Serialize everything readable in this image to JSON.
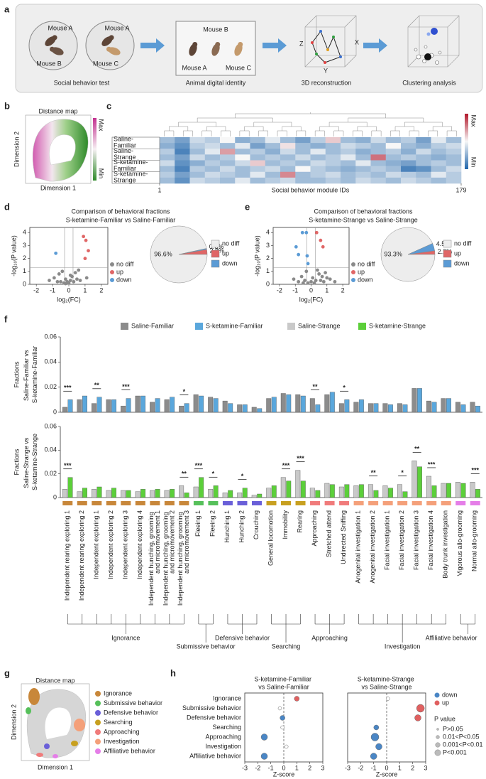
{
  "panel_labels": [
    "a",
    "b",
    "c",
    "d",
    "e",
    "f",
    "g",
    "h"
  ],
  "schematic": {
    "test_cages": [
      [
        "Mouse A",
        "Mouse B"
      ],
      [
        "Mouse A",
        "Mouse C"
      ]
    ],
    "test_caption": "Social behavior test",
    "identity_labels": [
      "Mouse B",
      "Mouse A",
      "Mouse C"
    ],
    "identity_caption": "Animal digital identity",
    "axes": [
      "X",
      "Y",
      "Z"
    ],
    "recon_caption": "3D reconstruction",
    "cluster_caption": "Clustering analysis"
  },
  "map_b": {
    "title": "Distance map",
    "xlabel": "Dimension 1",
    "ylabel": "Dimension 2",
    "scale": [
      "Max",
      "Min"
    ]
  },
  "map_g": {
    "title": "Distance map",
    "xlabel": "Dimension 1",
    "ylabel": "Dimension 2"
  },
  "chart_data": [
    {
      "type": "heatmap",
      "xlabel": "Social behavior module IDs",
      "xlim": [
        1,
        179
      ],
      "xticks": [
        1,
        179
      ],
      "zlim": [
        0,
        1
      ],
      "colorbar": [
        "Max",
        "Min"
      ],
      "row_groups": [
        {
          "name": "Saline-Familiar",
          "color": "#222222"
        },
        {
          "name": "Saline-Strange",
          "color": "#9a9a9a"
        },
        {
          "name": "S-ketamine-Familiar",
          "color": "#3b7fc4"
        },
        {
          "name": "S-ketamine-Strange",
          "color": "#3cb83c"
        }
      ],
      "values": [
        [
          0.3,
          0.2,
          0.4,
          0.35,
          0.5,
          0.25,
          0.3,
          0.45,
          0.3,
          0.2,
          0.35,
          0.6,
          0.3,
          0.25,
          0.4,
          0.3,
          0.35,
          0.2,
          0.45,
          0.3
        ],
        [
          0.25,
          0.15,
          0.35,
          0.4,
          0.3,
          0.45,
          0.2,
          0.3,
          0.55,
          0.3,
          0.25,
          0.3,
          0.4,
          0.35,
          0.3,
          0.5,
          0.3,
          0.25,
          0.35,
          0.4
        ],
        [
          0.35,
          0.1,
          0.3,
          0.45,
          0.7,
          0.3,
          0.35,
          0.25,
          0.4,
          0.3,
          0.45,
          0.3,
          0.35,
          0.25,
          0.3,
          0.35,
          0.25,
          0.4,
          0.3,
          0.35
        ],
        [
          0.3,
          0.2,
          0.4,
          0.3,
          0.35,
          0.5,
          0.3,
          0.35,
          0.3,
          0.4,
          0.3,
          0.35,
          0.45,
          0.3,
          0.8,
          0.3,
          0.35,
          0.3,
          0.25,
          0.3
        ],
        [
          0.4,
          0.15,
          0.25,
          0.35,
          0.3,
          0.4,
          0.6,
          0.3,
          0.35,
          0.3,
          0.4,
          0.35,
          0.3,
          0.45,
          0.3,
          0.25,
          0.2,
          0.3,
          0.35,
          0.3
        ],
        [
          0.3,
          0.1,
          0.35,
          0.3,
          0.4,
          0.3,
          0.35,
          0.4,
          0.3,
          0.5,
          0.35,
          0.3,
          0.25,
          0.3,
          0.35,
          0.3,
          0.1,
          0.15,
          0.3,
          0.4
        ],
        [
          0.35,
          0.2,
          0.3,
          0.4,
          0.35,
          0.3,
          0.45,
          0.3,
          0.75,
          0.3,
          0.35,
          0.4,
          0.3,
          0.35,
          0.3,
          0.4,
          0.35,
          0.3,
          0.45,
          0.35
        ],
        [
          0.3,
          0.15,
          0.4,
          0.35,
          0.3,
          0.45,
          0.3,
          0.35,
          0.4,
          0.3,
          0.3,
          0.35,
          0.3,
          0.4,
          0.35,
          0.3,
          0.4,
          0.35,
          0.3,
          0.35
        ]
      ]
    },
    {
      "type": "scatter",
      "title": "Comparison of behavioral fractions",
      "subtitle": "S-ketamine-Familiar vs Saline-Familiar",
      "xlabel": "log₂(FC)",
      "ylabel": "-log₁₀(P value)",
      "xlim": [
        -2.4,
        2.4
      ],
      "ylim": [
        0,
        4.4
      ],
      "xticks": [
        -2,
        -1,
        0,
        1,
        2
      ],
      "yticks": [
        0,
        1,
        2,
        3,
        4
      ],
      "hlines": [
        1.3
      ],
      "vlines": [
        -0.26,
        0.26
      ],
      "series": [
        {
          "name": "no diff",
          "color": "#8a8a8a",
          "x": [
            -1.2,
            -0.9,
            -0.6,
            -0.5,
            -0.3,
            -0.2,
            -0.1,
            0,
            0.1,
            0.2,
            0.3,
            0.4,
            0.5,
            0.7,
            -0.4,
            0.1,
            -0.7,
            0.6,
            1.1,
            -0.2
          ],
          "values": [
            0.3,
            0.5,
            0.8,
            0.2,
            0.1,
            0.4,
            0.2,
            0.1,
            0.3,
            0.6,
            0.2,
            0.9,
            0.4,
            0.3,
            1.0,
            0.7,
            0.2,
            1.1,
            0.5,
            0.05
          ]
        },
        {
          "name": "up",
          "color": "#e06666",
          "x": [
            0.9,
            1.05,
            1.2,
            1.0
          ],
          "values": [
            3.7,
            3.4,
            2.6,
            2.0
          ]
        },
        {
          "name": "down",
          "color": "#5b9bd5",
          "x": [
            -0.8
          ],
          "values": [
            2.4
          ]
        }
      ]
    },
    {
      "type": "pie",
      "categories": [
        "no diff",
        "up",
        "down"
      ],
      "values": [
        96.6,
        2.8,
        0.6
      ],
      "value_labels": [
        "96.6%",
        "2.8%",
        "0.6%"
      ],
      "colors": [
        "#ededed",
        "#e06666",
        "#5b9bd5"
      ]
    },
    {
      "type": "scatter",
      "title": "Comparison of behavioral fractions",
      "subtitle": "S-ketamine-Strange vs Saline-Strange",
      "xlabel": "log₂(FC)",
      "ylabel": "-log₁₀(P value)",
      "xlim": [
        -2.4,
        2.4
      ],
      "ylim": [
        0,
        4.4
      ],
      "xticks": [
        -2,
        -1,
        0,
        1,
        2
      ],
      "yticks": [
        0,
        1,
        2,
        3,
        4
      ],
      "hlines": [
        1.3
      ],
      "vlines": [
        -0.26,
        0.26
      ],
      "series": [
        {
          "name": "no diff",
          "color": "#8a8a8a",
          "x": [
            -1.1,
            -0.8,
            -0.6,
            -0.4,
            -0.2,
            0,
            0.1,
            0.3,
            0.5,
            0.7,
            0.9,
            1.2,
            1.5,
            -0.3,
            0.2,
            0.6,
            1.0,
            -0.5,
            0.4,
            0.8
          ],
          "values": [
            0.4,
            0.2,
            0.6,
            0.3,
            0.1,
            0.2,
            0.5,
            0.3,
            0.8,
            0.6,
            0.9,
            0.4,
            0.2,
            1.0,
            0.1,
            0.3,
            0.5,
            0.1,
            1.1,
            0.2
          ]
        },
        {
          "name": "up",
          "color": "#e06666",
          "x": [
            0.35,
            0.6,
            0.75
          ],
          "values": [
            4.0,
            3.4,
            2.9
          ]
        },
        {
          "name": "down",
          "color": "#5b9bd5",
          "x": [
            -0.55,
            -0.3,
            -0.95,
            -0.8,
            -0.25,
            -0.2
          ],
          "values": [
            4.0,
            4.0,
            2.9,
            2.3,
            2.2,
            1.6
          ]
        }
      ]
    },
    {
      "type": "pie",
      "categories": [
        "no diff",
        "up",
        "down"
      ],
      "values": [
        93.3,
        2.2,
        4.5
      ],
      "value_labels": [
        "93.3%",
        "2.2%",
        "4.5%"
      ],
      "colors": [
        "#ededed",
        "#e06666",
        "#5b9bd5"
      ]
    },
    {
      "type": "bar",
      "ylabel": "Fractions",
      "ylabel2": "Saline-Familiar vs S-ketamine-Familiar",
      "ylim": [
        0,
        0.06
      ],
      "yticks": [
        0,
        0.02,
        0.04,
        0.06
      ],
      "series": [
        {
          "name": "Saline-Familiar",
          "color": "#8c8c8c",
          "values": [
            0.004,
            0.01,
            0.007,
            0.01,
            0.005,
            0.013,
            0.008,
            0.01,
            0.005,
            0.014,
            0.012,
            0.009,
            0.006,
            0.004,
            0.011,
            0.015,
            0.014,
            0.011,
            0.014,
            0.007,
            0.008,
            0.007,
            0.007,
            0.007,
            0.019,
            0.009,
            0.011,
            0.008,
            0.008
          ]
        },
        {
          "name": "S-ketamine-Familiar",
          "color": "#5aa7dc",
          "values": [
            0.01,
            0.013,
            0.012,
            0.01,
            0.011,
            0.013,
            0.011,
            0.012,
            0.007,
            0.013,
            0.011,
            0.007,
            0.006,
            0.003,
            0.012,
            0.014,
            0.013,
            0.006,
            0.016,
            0.01,
            0.01,
            0.007,
            0.006,
            0.006,
            0.019,
            0.008,
            0.011,
            0.006,
            0.005
          ]
        }
      ],
      "significance": [
        {
          "index": 0,
          "label": "***"
        },
        {
          "index": 2,
          "label": "**"
        },
        {
          "index": 4,
          "label": "***"
        },
        {
          "index": 8,
          "label": "*"
        },
        {
          "index": 17,
          "label": "**"
        },
        {
          "index": 19,
          "label": "*"
        }
      ]
    },
    {
      "type": "bar",
      "ylabel": "Fractions",
      "ylabel2": "Saline-Strange vs S-ketamine-Strange",
      "ylim": [
        0,
        0.06
      ],
      "yticks": [
        0,
        0.02,
        0.04,
        0.06
      ],
      "categories": [
        "Independent rearing exploring 1",
        "Independent rearing exploring 2",
        "Independent exploring 1",
        "Independent exploring 2",
        "Independent exploring 3",
        "Independent exploring 4",
        "Independent hunching, grooming and micromovement 1",
        "Independent hunching, grooming and micromovement 2",
        "Independent hunching, grooming and micromovement 3",
        "Fleeing 1",
        "Fleeing 2",
        "Hunching 1",
        "Hunching 2",
        "Crouching",
        "General locomotion",
        "Immobility",
        "Rearing",
        "Approaching",
        "Stretched attend",
        "Undirected Sniffing",
        "Anogenital investigation 1",
        "Anogenital investigation 2",
        "Facial investigation 1",
        "Facial investigation 2",
        "Facial investigation 3",
        "Facial investigation 4",
        "Body trunk investigation",
        "Vigorous allo-grooming",
        "Normal allo-grooming"
      ],
      "groups": [
        {
          "name": "Ignorance",
          "color": "#c8873a",
          "size": 9
        },
        {
          "name": "Submissive behavior",
          "color": "#56c05a",
          "size": 2
        },
        {
          "name": "Defensive behavior",
          "color": "#6a5fd8",
          "size": 3
        },
        {
          "name": "Searching",
          "color": "#c8a020",
          "size": 3
        },
        {
          "name": "Approaching",
          "color": "#f07b7b",
          "size": 3
        },
        {
          "name": "Investigation",
          "color": "#f4a07a",
          "size": 7
        },
        {
          "name": "Affiliative behavior",
          "color": "#e57ee8",
          "size": 2
        }
      ],
      "series": [
        {
          "name": "Saline-Strange",
          "color": "#c9c9c9",
          "values": [
            0.007,
            0.005,
            0.007,
            0.006,
            0.006,
            0.005,
            0.006,
            0.006,
            0.01,
            0.009,
            0.007,
            0.004,
            0.004,
            0.002,
            0.008,
            0.017,
            0.023,
            0.008,
            0.012,
            0.009,
            0.01,
            0.011,
            0.01,
            0.011,
            0.031,
            0.018,
            0.012,
            0.013,
            0.013
          ]
        },
        {
          "name": "S-ketamine-Strange",
          "color": "#5ccf3a",
          "values": [
            0.017,
            0.008,
            0.009,
            0.008,
            0.006,
            0.007,
            0.007,
            0.007,
            0.004,
            0.017,
            0.01,
            0.006,
            0.008,
            0.003,
            0.01,
            0.014,
            0.014,
            0.006,
            0.011,
            0.011,
            0.011,
            0.006,
            0.008,
            0.005,
            0.026,
            0.01,
            0.012,
            0.012,
            0.007
          ]
        }
      ],
      "significance": [
        {
          "index": 0,
          "label": "***"
        },
        {
          "index": 8,
          "label": "**"
        },
        {
          "index": 9,
          "label": "***"
        },
        {
          "index": 10,
          "label": "*"
        },
        {
          "index": 12,
          "label": "*"
        },
        {
          "index": 15,
          "label": "***"
        },
        {
          "index": 16,
          "label": "***"
        },
        {
          "index": 21,
          "label": "**"
        },
        {
          "index": 23,
          "label": "*"
        },
        {
          "index": 24,
          "label": "**"
        },
        {
          "index": 25,
          "label": "***"
        },
        {
          "index": 28,
          "label": "***"
        }
      ]
    },
    {
      "type": "dot",
      "title": "S-ketamine-Familiar vs Saline-Familiar",
      "xlabel": "Z-score",
      "xlim": [
        -3,
        3
      ],
      "xticks": [
        -3,
        -2,
        -1,
        0,
        1,
        2,
        3
      ],
      "categories": [
        "Ignorance",
        "Submissive behavior",
        "Defensive behavior",
        "Searching",
        "Approaching",
        "Investigation",
        "Affiliative behavior"
      ],
      "values": [
        1.0,
        -0.3,
        -0.1,
        -0.1,
        -1.5,
        0.2,
        -1.5
      ],
      "p_bins": [
        1,
        0,
        1,
        0,
        2,
        0,
        2
      ],
      "legend": {
        "direction": [
          {
            "name": "down",
            "color": "#4a86c5"
          },
          {
            "name": "up",
            "color": "#e06060"
          }
        ],
        "p_title": "P value",
        "p_labels": [
          "P>0.05",
          "0.01<P<0.05",
          "0.001<P<0.01",
          "P<0.001"
        ]
      }
    },
    {
      "type": "dot",
      "title": "S-ketamine-Strange vs Saline-Strange",
      "xlabel": "Z-score",
      "xlim": [
        -3,
        3
      ],
      "xticks": [
        -3,
        -2,
        -1,
        0,
        1,
        2,
        3
      ],
      "values": [
        0.1,
        2.6,
        2.4,
        -0.8,
        -0.9,
        -0.6,
        -1.0
      ],
      "p_bins": [
        0,
        3,
        2,
        1,
        3,
        2,
        2
      ]
    }
  ]
}
